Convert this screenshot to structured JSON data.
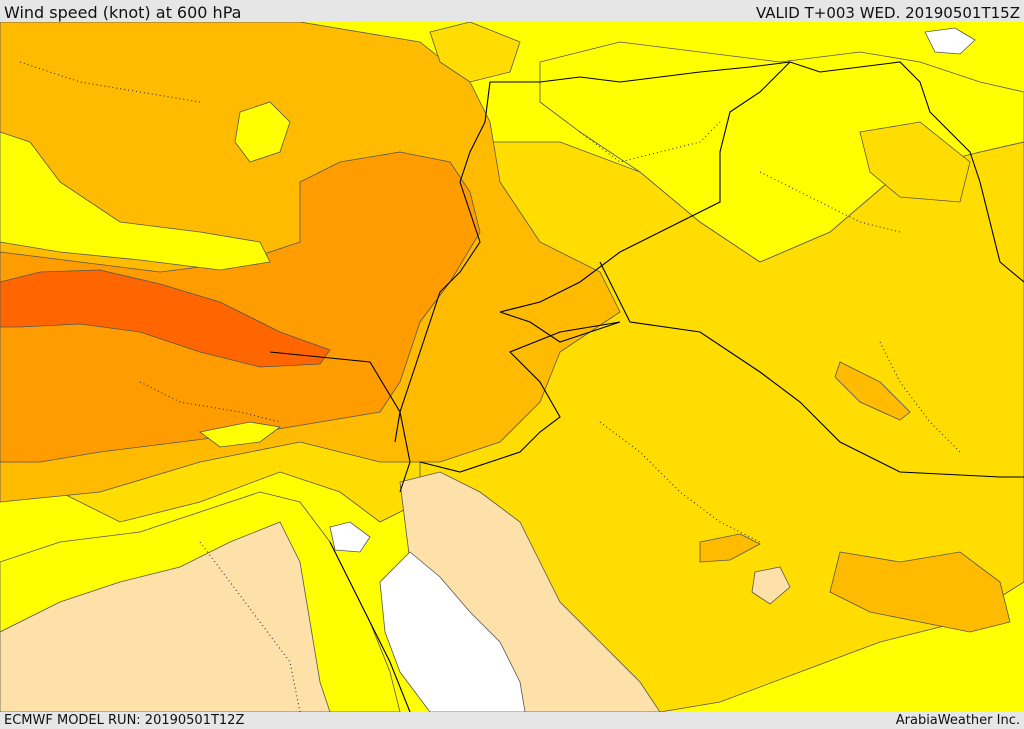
{
  "header": {
    "title": "Wind speed (knot) at 600 hPa",
    "valid": "VALID T+003 WED. 20190501T15Z"
  },
  "footer": {
    "model_run": "ECMWF MODEL RUN: 20190501T12Z",
    "credit": "ArabiaWeather Inc."
  },
  "colors": {
    "white": "#ffffff",
    "pale_orange": "#fde1a8",
    "yellow": "#ffff00",
    "gold": "#ffdd00",
    "light_orange": "#ffbb00",
    "orange": "#ff9d00",
    "dark_orange": "#ff6600",
    "border": "#000000",
    "contour": "#555555"
  }
}
